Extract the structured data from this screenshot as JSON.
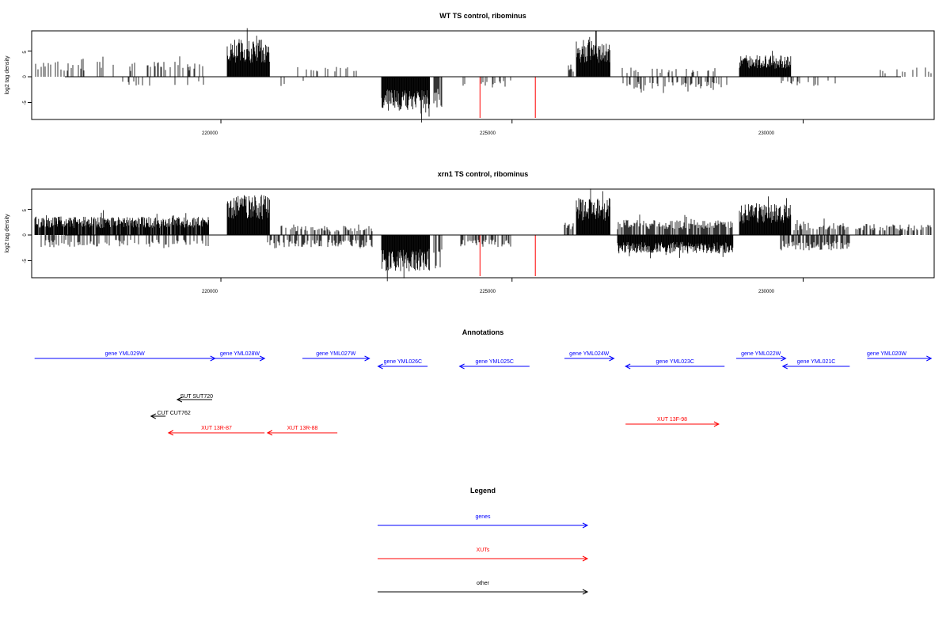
{
  "panels": [
    {
      "title": "WT TS control, ribominus",
      "ylabel": "log2 tag density",
      "y_ticks": [
        "5",
        "0",
        "-5"
      ],
      "x_ticks": [
        "220000",
        "225000",
        "230000"
      ]
    },
    {
      "title": "xrn1 TS control, ribominus",
      "ylabel": "log2 tag density",
      "y_ticks": [
        "5",
        "0",
        "-5"
      ],
      "x_ticks": [
        "220000",
        "225000",
        "230000"
      ]
    }
  ],
  "annotations": {
    "title": "Annotations",
    "colors": {
      "gene": "#0000ff",
      "xut": "#ff0000",
      "other": "#000000"
    },
    "items": [
      {
        "label": "gene YML029W",
        "kind": "gene",
        "strand": "+",
        "start": 216800,
        "end": 219900
      },
      {
        "label": "gene YML028W",
        "kind": "gene",
        "strand": "+",
        "start": 219900,
        "end": 220750
      },
      {
        "label": "gene YML027W",
        "kind": "gene",
        "strand": "+",
        "start": 221400,
        "end": 222550
      },
      {
        "label": "gene YML026C",
        "kind": "gene",
        "strand": "-",
        "start": 222700,
        "end": 223550
      },
      {
        "label": "gene YML025C",
        "kind": "gene",
        "strand": "-",
        "start": 224100,
        "end": 225300
      },
      {
        "label": "gene YML024W",
        "kind": "gene",
        "strand": "+",
        "start": 225900,
        "end": 226750
      },
      {
        "label": "gene YML023C",
        "kind": "gene",
        "strand": "-",
        "start": 226950,
        "end": 228650
      },
      {
        "label": "gene YML022W",
        "kind": "gene",
        "strand": "+",
        "start": 228850,
        "end": 229700
      },
      {
        "label": "gene YML021C",
        "kind": "gene",
        "strand": "-",
        "start": 229650,
        "end": 230800
      },
      {
        "label": "gene YML020W",
        "kind": "gene",
        "strand": "+",
        "start": 231100,
        "end": 232200
      },
      {
        "label": "SUT SUT720",
        "kind": "other",
        "strand": "-",
        "start": 219250,
        "end": 219850
      },
      {
        "label": "CUT CUT762",
        "kind": "other",
        "strand": "-",
        "start": 218800,
        "end": 219050
      },
      {
        "label": "XUT 13R-87",
        "kind": "xut",
        "strand": "-",
        "start": 219100,
        "end": 220750
      },
      {
        "label": "XUT 13R-88",
        "kind": "xut",
        "strand": "-",
        "start": 220800,
        "end": 222000
      },
      {
        "label": "XUT 13F-98",
        "kind": "xut",
        "strand": "+",
        "start": 226950,
        "end": 228550
      }
    ]
  },
  "legend": {
    "title": "Legend",
    "items": [
      {
        "label": "genes",
        "color": "#0000ff"
      },
      {
        "label": "XUTs",
        "color": "#ff0000"
      },
      {
        "label": "other",
        "color": "#000000"
      }
    ]
  },
  "chart_data": [
    {
      "type": "bar",
      "title": "WT TS control, ribominus",
      "ylabel": "log2 tag density",
      "xlabel": "",
      "xlim": [
        216750,
        232250
      ],
      "ylim": [
        -8,
        8.5
      ],
      "x_ticks": [
        220000,
        225000,
        230000
      ],
      "y_ticks": [
        5,
        0,
        -5
      ],
      "regions": [
        {
          "start": 216800,
          "end": 219750,
          "strand": "+",
          "level": 2.5,
          "density": 0.25
        },
        {
          "start": 218300,
          "end": 219800,
          "strand": "-",
          "level": 1.5,
          "density": 0.12
        },
        {
          "start": 220100,
          "end": 220850,
          "strand": "+",
          "level": 6.0,
          "density": 1.0
        },
        {
          "start": 221000,
          "end": 221600,
          "strand": "-",
          "level": 1.5,
          "density": 0.1
        },
        {
          "start": 221300,
          "end": 222400,
          "strand": "+",
          "level": 2.0,
          "density": 0.2
        },
        {
          "start": 222750,
          "end": 223600,
          "strand": "-",
          "level": 5.5,
          "density": 1.0
        },
        {
          "start": 223650,
          "end": 223800,
          "strand": "-",
          "level": 5.0,
          "density": 0.8
        },
        {
          "start": 224100,
          "end": 225000,
          "strand": "-",
          "level": 1.5,
          "density": 0.1
        },
        {
          "start": 225950,
          "end": 226050,
          "strand": "+",
          "level": 2.0,
          "density": 0.8
        },
        {
          "start": 226100,
          "end": 226700,
          "strand": "+",
          "level": 6.0,
          "density": 1.0
        },
        {
          "start": 226900,
          "end": 228700,
          "strand": "-",
          "level": 2.0,
          "density": 0.4
        },
        {
          "start": 226800,
          "end": 228500,
          "strand": "+",
          "level": 1.5,
          "density": 0.15
        },
        {
          "start": 228900,
          "end": 229800,
          "strand": "+",
          "level": 3.5,
          "density": 1.0
        },
        {
          "start": 229600,
          "end": 230600,
          "strand": "-",
          "level": 1.5,
          "density": 0.2
        },
        {
          "start": 231300,
          "end": 232200,
          "strand": "+",
          "level": 1.5,
          "density": 0.15
        }
      ],
      "red_marks": [
        {
          "x": 224450,
          "value": -8
        },
        {
          "x": 225400,
          "value": -8
        }
      ]
    },
    {
      "type": "bar",
      "title": "xrn1 TS control, ribominus",
      "ylabel": "log2 tag density",
      "xlabel": "",
      "xlim": [
        216750,
        232250
      ],
      "ylim": [
        -8,
        8.5
      ],
      "x_ticks": [
        220000,
        225000,
        230000
      ],
      "y_ticks": [
        5,
        0,
        -5
      ],
      "regions": [
        {
          "start": 216800,
          "end": 219800,
          "strand": "+",
          "level": 3.0,
          "density": 0.9
        },
        {
          "start": 216900,
          "end": 219800,
          "strand": "-",
          "level": 2.0,
          "density": 0.4
        },
        {
          "start": 220100,
          "end": 220850,
          "strand": "+",
          "level": 6.5,
          "density": 1.0
        },
        {
          "start": 220800,
          "end": 222600,
          "strand": "-",
          "level": 2.0,
          "density": 0.6
        },
        {
          "start": 221000,
          "end": 222600,
          "strand": "+",
          "level": 1.5,
          "density": 0.5
        },
        {
          "start": 222750,
          "end": 223600,
          "strand": "-",
          "level": 6.0,
          "density": 1.0
        },
        {
          "start": 223650,
          "end": 223800,
          "strand": "-",
          "level": 5.5,
          "density": 0.8
        },
        {
          "start": 224100,
          "end": 225000,
          "strand": "-",
          "level": 2.0,
          "density": 0.6
        },
        {
          "start": 225900,
          "end": 226050,
          "strand": "+",
          "level": 2.0,
          "density": 0.8
        },
        {
          "start": 226100,
          "end": 226700,
          "strand": "+",
          "level": 6.0,
          "density": 1.0
        },
        {
          "start": 226800,
          "end": 228800,
          "strand": "-",
          "level": 3.0,
          "density": 1.0
        },
        {
          "start": 226800,
          "end": 228800,
          "strand": "+",
          "level": 2.5,
          "density": 0.8
        },
        {
          "start": 228900,
          "end": 229800,
          "strand": "+",
          "level": 5.0,
          "density": 1.0
        },
        {
          "start": 229600,
          "end": 230800,
          "strand": "-",
          "level": 2.5,
          "density": 0.7
        },
        {
          "start": 229800,
          "end": 230800,
          "strand": "+",
          "level": 2.0,
          "density": 0.5
        },
        {
          "start": 230900,
          "end": 232200,
          "strand": "+",
          "level": 1.8,
          "density": 0.5
        }
      ],
      "red_marks": [
        {
          "x": 224450,
          "value": -8
        },
        {
          "x": 225400,
          "value": -8
        }
      ]
    }
  ]
}
